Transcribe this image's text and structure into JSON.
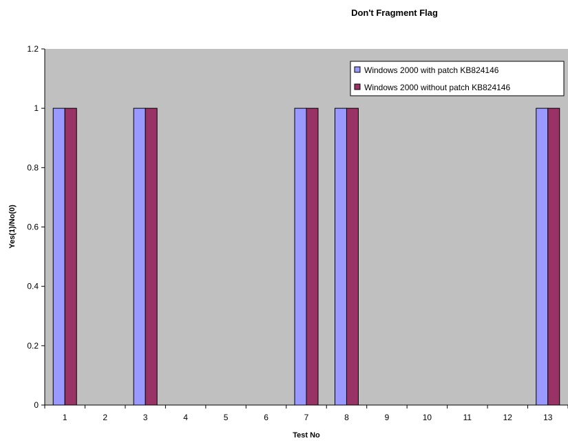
{
  "chart_data": {
    "type": "bar",
    "title": "Don't Fragment Flag",
    "xlabel": "Test No",
    "ylabel": "Yes(1)/No(0)",
    "categories": [
      "1",
      "2",
      "3",
      "4",
      "5",
      "6",
      "7",
      "8",
      "9",
      "10",
      "11",
      "12",
      "13"
    ],
    "ylim": [
      0,
      1.2
    ],
    "yticks": [
      "0",
      "0.2",
      "0.4",
      "0.6",
      "0.8",
      "1",
      "1.2"
    ],
    "series": [
      {
        "name": "Windows 2000 with patch KB824146",
        "color": "#9999ff",
        "values": [
          1,
          0,
          1,
          0,
          0,
          0,
          1,
          1,
          0,
          0,
          0,
          0,
          1
        ]
      },
      {
        "name": "Windows 2000 without patch KB824146",
        "color": "#993366",
        "values": [
          1,
          0,
          1,
          0,
          0,
          0,
          1,
          1,
          0,
          0,
          0,
          0,
          1
        ]
      }
    ],
    "plot_background": "#c0c0c0",
    "grid": false,
    "legend_position": "top-right"
  }
}
